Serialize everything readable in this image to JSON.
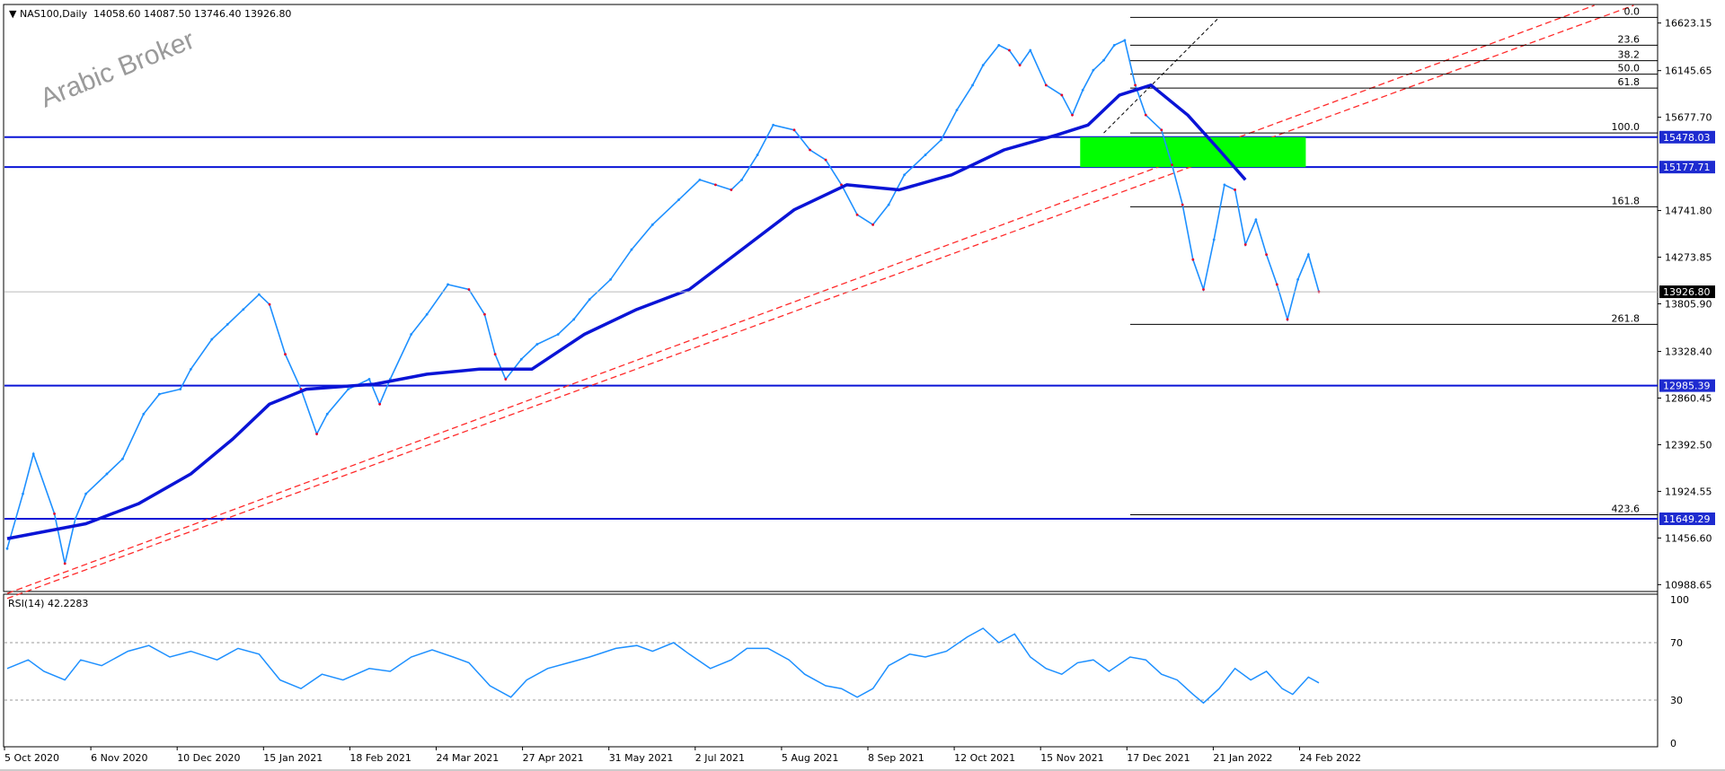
{
  "header": {
    "symbol": "NAS100,Daily",
    "ohlc": "14058.60 14087.50 13746.40 13926.80"
  },
  "watermark": "Arabic Broker",
  "rsi_label": "RSI(14) 42.2283",
  "colors": {
    "bull": "#1e90ff",
    "bear": "#e4002b",
    "ma": "#0a14d6",
    "trend": "#ff2a2a",
    "support_line": "#0a14d6",
    "zone": "#00ff00",
    "price_tag": "#1e2bd0",
    "rsi": "#1e90ff"
  },
  "chart_data": [
    {
      "type": "line",
      "title": "NAS100,Daily",
      "x_ticks": [
        "5 Oct 2020",
        "6 Nov 2020",
        "10 Dec 2020",
        "15 Jan 2021",
        "18 Feb 2021",
        "24 Mar 2021",
        "27 Apr 2021",
        "31 May 2021",
        "2 Jul 2021",
        "5 Aug 2021",
        "8 Sep 2021",
        "12 Oct 2021",
        "15 Nov 2021",
        "17 Dec 2021",
        "21 Jan 2022",
        "24 Feb 2022"
      ],
      "y_ticks": [
        "16623.15",
        "16145.65",
        "15677.70",
        "14741.80",
        "14273.85",
        "13805.90",
        "13328.40",
        "12860.45",
        "12392.50",
        "11924.55",
        "11456.60",
        "10988.65"
      ],
      "ylim": [
        10920,
        16800
      ],
      "close_path": [
        [
          0,
          11350
        ],
        [
          6,
          11900
        ],
        [
          10,
          12300
        ],
        [
          18,
          11700
        ],
        [
          22,
          11200
        ],
        [
          26,
          11650
        ],
        [
          30,
          11900
        ],
        [
          38,
          12100
        ],
        [
          44,
          12250
        ],
        [
          52,
          12700
        ],
        [
          58,
          12900
        ],
        [
          66,
          12950
        ],
        [
          70,
          13150
        ],
        [
          78,
          13450
        ],
        [
          84,
          13600
        ],
        [
          90,
          13750
        ],
        [
          96,
          13900
        ],
        [
          100,
          13800
        ],
        [
          106,
          13300
        ],
        [
          112,
          12950
        ],
        [
          118,
          12500
        ],
        [
          122,
          12700
        ],
        [
          130,
          12950
        ],
        [
          138,
          13050
        ],
        [
          142,
          12800
        ],
        [
          146,
          13050
        ],
        [
          154,
          13500
        ],
        [
          160,
          13700
        ],
        [
          168,
          14000
        ],
        [
          176,
          13950
        ],
        [
          182,
          13700
        ],
        [
          186,
          13300
        ],
        [
          190,
          13050
        ],
        [
          196,
          13250
        ],
        [
          202,
          13400
        ],
        [
          210,
          13500
        ],
        [
          216,
          13650
        ],
        [
          222,
          13850
        ],
        [
          230,
          14050
        ],
        [
          238,
          14350
        ],
        [
          246,
          14600
        ],
        [
          256,
          14850
        ],
        [
          264,
          15050
        ],
        [
          270,
          15000
        ],
        [
          276,
          14950
        ],
        [
          280,
          15050
        ],
        [
          286,
          15300
        ],
        [
          292,
          15600
        ],
        [
          300,
          15550
        ],
        [
          306,
          15350
        ],
        [
          312,
          15250
        ],
        [
          318,
          15000
        ],
        [
          324,
          14700
        ],
        [
          330,
          14600
        ],
        [
          336,
          14800
        ],
        [
          342,
          15100
        ],
        [
          350,
          15300
        ],
        [
          356,
          15450
        ],
        [
          362,
          15750
        ],
        [
          368,
          16000
        ],
        [
          372,
          16200
        ],
        [
          378,
          16400
        ],
        [
          382,
          16350
        ],
        [
          386,
          16200
        ],
        [
          390,
          16350
        ],
        [
          396,
          16000
        ],
        [
          402,
          15900
        ],
        [
          406,
          15700
        ],
        [
          410,
          15950
        ],
        [
          414,
          16150
        ],
        [
          418,
          16250
        ],
        [
          422,
          16400
        ],
        [
          426,
          16450
        ],
        [
          430,
          16000
        ],
        [
          434,
          15700
        ],
        [
          440,
          15550
        ],
        [
          444,
          15200
        ],
        [
          448,
          14800
        ],
        [
          452,
          14250
        ],
        [
          456,
          13950
        ],
        [
          460,
          14450
        ],
        [
          464,
          15000
        ],
        [
          468,
          14950
        ],
        [
          472,
          14400
        ],
        [
          476,
          14650
        ],
        [
          480,
          14300
        ],
        [
          484,
          14000
        ],
        [
          488,
          13650
        ],
        [
          492,
          14050
        ],
        [
          496,
          14300
        ],
        [
          500,
          13927
        ]
      ],
      "ma_path": [
        [
          0,
          11450
        ],
        [
          30,
          11600
        ],
        [
          50,
          11800
        ],
        [
          70,
          12100
        ],
        [
          86,
          12450
        ],
        [
          100,
          12800
        ],
        [
          114,
          12950
        ],
        [
          140,
          13000
        ],
        [
          160,
          13100
        ],
        [
          180,
          13150
        ],
        [
          200,
          13150
        ],
        [
          220,
          13500
        ],
        [
          240,
          13750
        ],
        [
          260,
          13950
        ],
        [
          280,
          14350
        ],
        [
          300,
          14750
        ],
        [
          320,
          15000
        ],
        [
          340,
          14950
        ],
        [
          360,
          15100
        ],
        [
          380,
          15350
        ],
        [
          400,
          15500
        ],
        [
          412,
          15600
        ],
        [
          424,
          15900
        ],
        [
          436,
          16000
        ],
        [
          450,
          15700
        ],
        [
          462,
          15350
        ],
        [
          472,
          15050
        ]
      ],
      "trendline_1": [
        [
          0,
          10900
        ],
        [
          605,
          16800
        ]
      ],
      "trendline_2": [
        [
          0,
          10850
        ],
        [
          620,
          16800
        ]
      ],
      "horizontal_levels": [
        15478.03,
        15177.71,
        12985.39,
        11649.29
      ],
      "fibonacci": [
        {
          "label": "0.0",
          "price": 16680
        },
        {
          "label": "23.6",
          "price": 16400
        },
        {
          "label": "38.2",
          "price": 16245
        },
        {
          "label": "50.0",
          "price": 16110
        },
        {
          "label": "61.8",
          "price": 15970
        },
        {
          "label": "100.0",
          "price": 15520
        },
        {
          "label": "161.8",
          "price": 14780
        },
        {
          "label": "261.8",
          "price": 13600
        },
        {
          "label": "423.6",
          "price": 11690
        }
      ],
      "green_zone": {
        "price_top": 15478.03,
        "price_bottom": 15177.71,
        "start_day": 409,
        "end_day": 495
      },
      "price_tags": [
        {
          "label": "15478.03",
          "price": 15478.03
        },
        {
          "label": "15177.71",
          "price": 15177.71
        },
        {
          "label": "13926.80",
          "price": 13926.8
        },
        {
          "label": "12985.39",
          "price": 12985.39
        },
        {
          "label": "11649.29",
          "price": 11649.29
        }
      ]
    },
    {
      "type": "line",
      "title": "RSI(14) 42.2283",
      "y_ticks": [
        "100",
        "70",
        "30",
        "0"
      ],
      "ylim": [
        0,
        100
      ],
      "levels": [
        70,
        30
      ],
      "rsi_path": [
        [
          0,
          52
        ],
        [
          8,
          58
        ],
        [
          14,
          50
        ],
        [
          22,
          44
        ],
        [
          28,
          58
        ],
        [
          36,
          54
        ],
        [
          46,
          64
        ],
        [
          54,
          68
        ],
        [
          62,
          60
        ],
        [
          70,
          64
        ],
        [
          80,
          58
        ],
        [
          88,
          66
        ],
        [
          96,
          62
        ],
        [
          104,
          44
        ],
        [
          112,
          38
        ],
        [
          120,
          48
        ],
        [
          128,
          44
        ],
        [
          138,
          52
        ],
        [
          146,
          50
        ],
        [
          154,
          60
        ],
        [
          162,
          65
        ],
        [
          170,
          60
        ],
        [
          176,
          56
        ],
        [
          184,
          40
        ],
        [
          192,
          32
        ],
        [
          198,
          44
        ],
        [
          206,
          52
        ],
        [
          214,
          56
        ],
        [
          222,
          60
        ],
        [
          232,
          66
        ],
        [
          240,
          68
        ],
        [
          246,
          64
        ],
        [
          254,
          70
        ],
        [
          260,
          62
        ],
        [
          268,
          52
        ],
        [
          276,
          58
        ],
        [
          282,
          66
        ],
        [
          290,
          66
        ],
        [
          298,
          58
        ],
        [
          304,
          48
        ],
        [
          312,
          40
        ],
        [
          318,
          38
        ],
        [
          324,
          32
        ],
        [
          330,
          38
        ],
        [
          336,
          54
        ],
        [
          344,
          62
        ],
        [
          350,
          60
        ],
        [
          358,
          64
        ],
        [
          366,
          74
        ],
        [
          372,
          80
        ],
        [
          378,
          70
        ],
        [
          384,
          76
        ],
        [
          390,
          60
        ],
        [
          396,
          52
        ],
        [
          402,
          48
        ],
        [
          408,
          56
        ],
        [
          414,
          58
        ],
        [
          420,
          50
        ],
        [
          428,
          60
        ],
        [
          434,
          58
        ],
        [
          440,
          48
        ],
        [
          446,
          44
        ],
        [
          452,
          34
        ],
        [
          456,
          28
        ],
        [
          462,
          38
        ],
        [
          468,
          52
        ],
        [
          474,
          44
        ],
        [
          480,
          50
        ],
        [
          486,
          38
        ],
        [
          490,
          34
        ],
        [
          496,
          46
        ],
        [
          500,
          42
        ]
      ]
    }
  ]
}
